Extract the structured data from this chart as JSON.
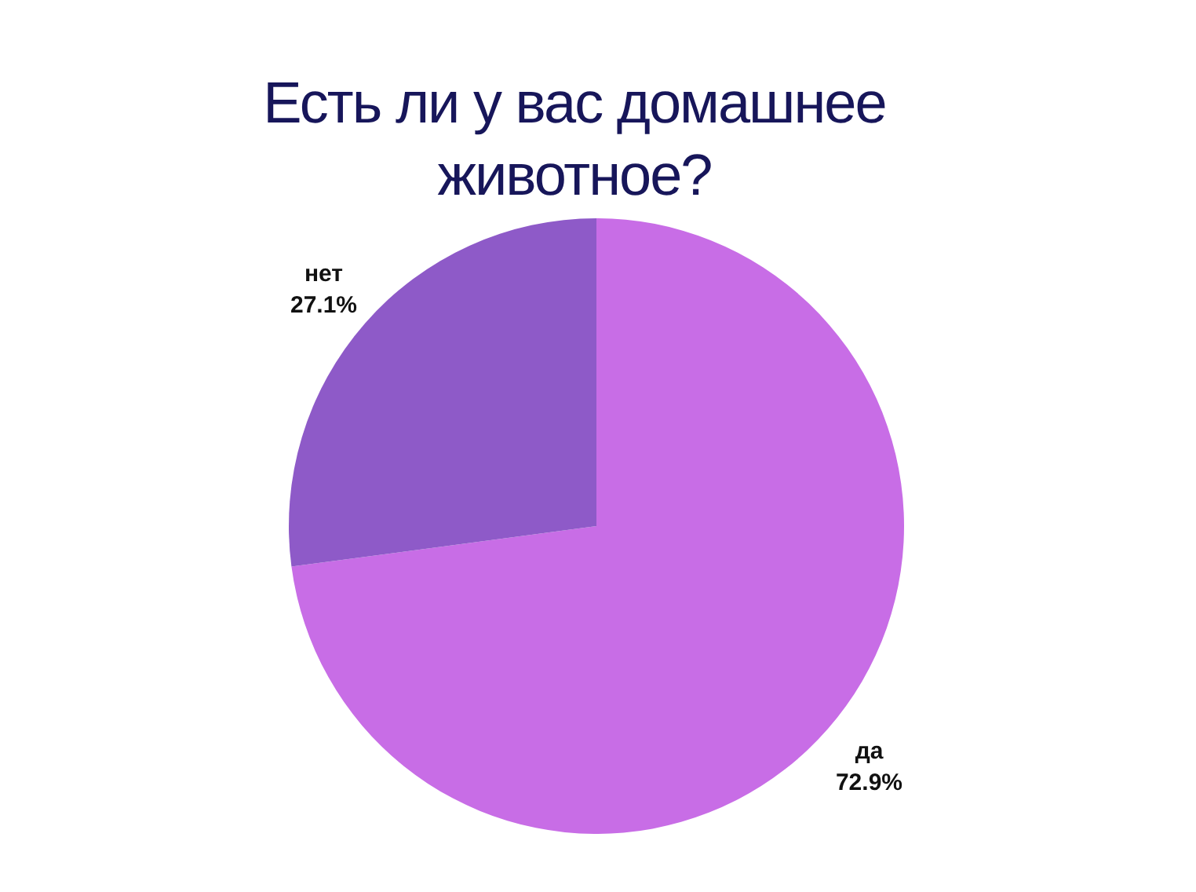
{
  "chart_data": {
    "type": "pie",
    "title": "Есть ли у вас домашнее животное?",
    "categories": [
      "да",
      "нет"
    ],
    "values": [
      72.9,
      27.1
    ],
    "value_labels": [
      "72.9%",
      "27.1%"
    ],
    "colors": [
      "#c86de6",
      "#8e5ac8"
    ],
    "legend": false
  }
}
